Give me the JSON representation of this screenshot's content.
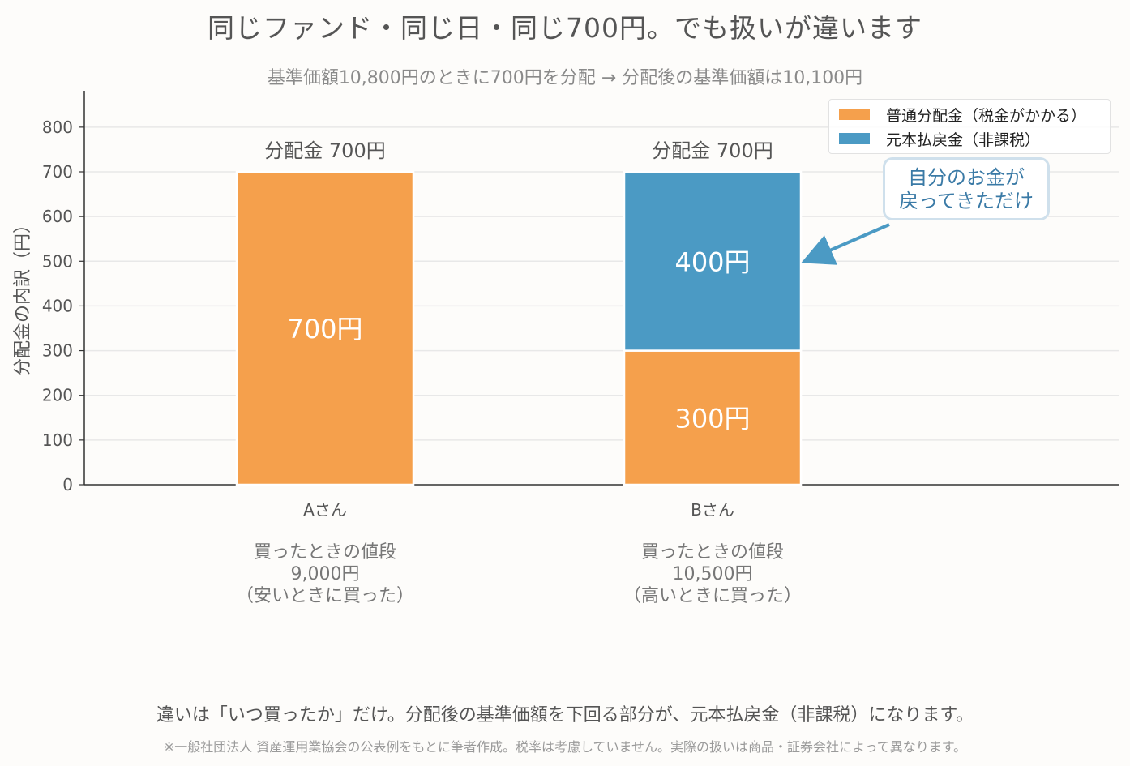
{
  "title": "同じファンド・同じ日・同じ700円。でも扱いが違います",
  "subtitle": "基準価額10,800円のときに700円を分配 → 分配後の基準価額は10,100円",
  "chart_data": {
    "type": "bar",
    "stacked": true,
    "categories": [
      "Aさん",
      "Bさん"
    ],
    "series": [
      {
        "name": "普通分配金（税金がかかる）",
        "values": [
          700,
          300
        ],
        "color": "#f5a04c"
      },
      {
        "name": "元本払戻金（非課税）",
        "values": [
          0,
          400
        ],
        "color": "#4b9ac4"
      }
    ],
    "segment_labels": [
      [
        "700円",
        ""
      ],
      [
        "300円",
        "400円"
      ]
    ],
    "totals_labels": [
      "分配金 700円",
      "分配金 700円"
    ],
    "ylabel": "分配金の内訳（円）",
    "xlabel": "",
    "ylim": [
      0,
      880
    ],
    "yticks": [
      0,
      100,
      200,
      300,
      400,
      500,
      600,
      700,
      800
    ],
    "grid": true,
    "legend_position": "top-right"
  },
  "category_notes": [
    {
      "line1": "買ったときの値段",
      "line2": "9,000円",
      "line3": "（安いときに買った）"
    },
    {
      "line1": "買ったときの値段",
      "line2": "10,500円",
      "line3": "（高いときに買った）"
    }
  ],
  "annotation": {
    "line1": "自分のお金が",
    "line2": "戻ってきただけ",
    "color": "#3a7aa6"
  },
  "footer": {
    "main": "違いは「いつ買ったか」だけ。分配後の基準価額を下回る部分が、元本払戻金（非課税）になります。",
    "note": "※一般社団法人 資産運用業協会の公表例をもとに筆者作成。税率は考慮していません。実際の扱いは商品・証券会社によって異なります。"
  },
  "colors": {
    "ordinary": "#f5a04c",
    "return_of_capital": "#4b9ac4",
    "text": "#555555",
    "muted": "#8a8a8a"
  }
}
